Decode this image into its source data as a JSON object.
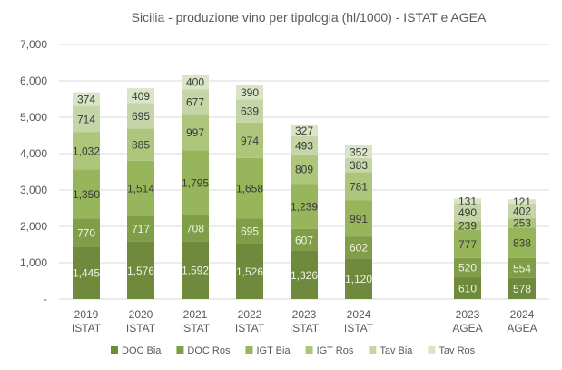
{
  "chart_data": {
    "type": "bar",
    "stacked": true,
    "title": "Sicilia - produzione  vino per tipologia (hl/1000) - ISTAT e AGEA",
    "xlabel": "",
    "ylabel": "",
    "ylim": [
      0,
      7000
    ],
    "yticks": [
      0,
      1000,
      2000,
      3000,
      4000,
      5000,
      6000,
      7000
    ],
    "ytick_labels": [
      "-",
      "1,000",
      "2,000",
      "3,000",
      "4,000",
      "5,000",
      "6,000",
      "7,000"
    ],
    "grid": true,
    "legend_position": "bottom",
    "categories": [
      [
        "2019",
        "ISTAT"
      ],
      [
        "2020",
        "ISTAT"
      ],
      [
        "2021",
        "ISTAT"
      ],
      [
        "2022",
        "ISTAT"
      ],
      [
        "2023",
        "ISTAT"
      ],
      [
        "2024",
        "ISTAT"
      ],
      [
        "",
        ""
      ],
      [
        "2023",
        "AGEA"
      ],
      [
        "2024",
        "AGEA"
      ]
    ],
    "series": [
      {
        "name": "DOC Bia",
        "color": "#6f8a3c",
        "label_color": "#eef3e2",
        "values": [
          1445,
          1576,
          1592,
          1526,
          1326,
          1120,
          null,
          610,
          578
        ]
      },
      {
        "name": "DOC Ros",
        "color": "#809d47",
        "label_color": "#eef3e2",
        "values": [
          770,
          717,
          708,
          695,
          607,
          602,
          null,
          520,
          554
        ]
      },
      {
        "name": "IGT Bia",
        "color": "#97b55a",
        "label_color": "#3a3a3a",
        "values": [
          1350,
          1514,
          1795,
          1658,
          1239,
          991,
          null,
          777,
          838
        ]
      },
      {
        "name": "IGT Ros",
        "color": "#adc67c",
        "label_color": "#3a3a3a",
        "values": [
          1032,
          885,
          997,
          974,
          809,
          781,
          null,
          239,
          253
        ]
      },
      {
        "name": "Tav Bia",
        "color": "#c5d5a8",
        "label_color": "#3a3a3a",
        "values": [
          714,
          695,
          677,
          639,
          493,
          383,
          null,
          490,
          402
        ]
      },
      {
        "name": "Tav Ros",
        "color": "#dae5c8",
        "label_color": "#3a3a3a",
        "values": [
          374,
          409,
          400,
          390,
          327,
          352,
          null,
          131,
          121
        ]
      }
    ]
  }
}
